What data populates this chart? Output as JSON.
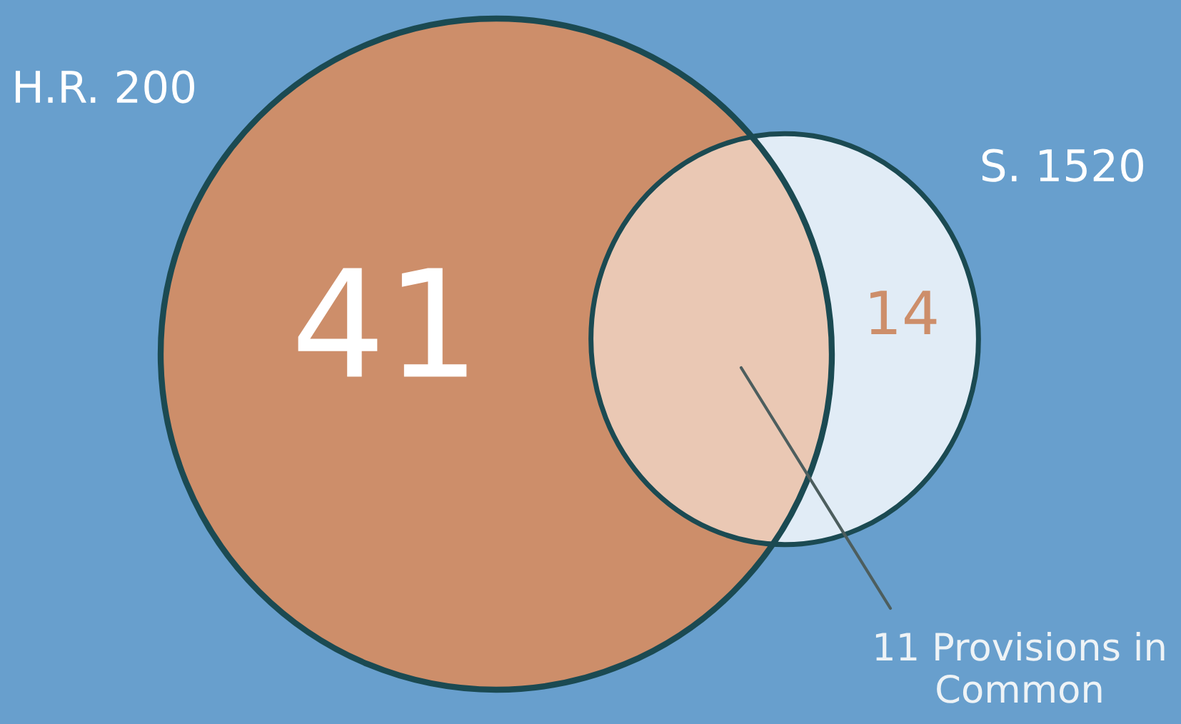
{
  "chart_data": {
    "type": "other",
    "categories": [
      "H.R. 200",
      "S. 1520",
      null
    ],
    "values": [
      41,
      14,
      11
    ],
    "value_labels": [
      "41",
      "14",
      "11 Provisions in Common"
    ],
    "colors": [
      "#cd8e6a",
      "#e1ecf6",
      "#eac8b4"
    ]
  }
}
